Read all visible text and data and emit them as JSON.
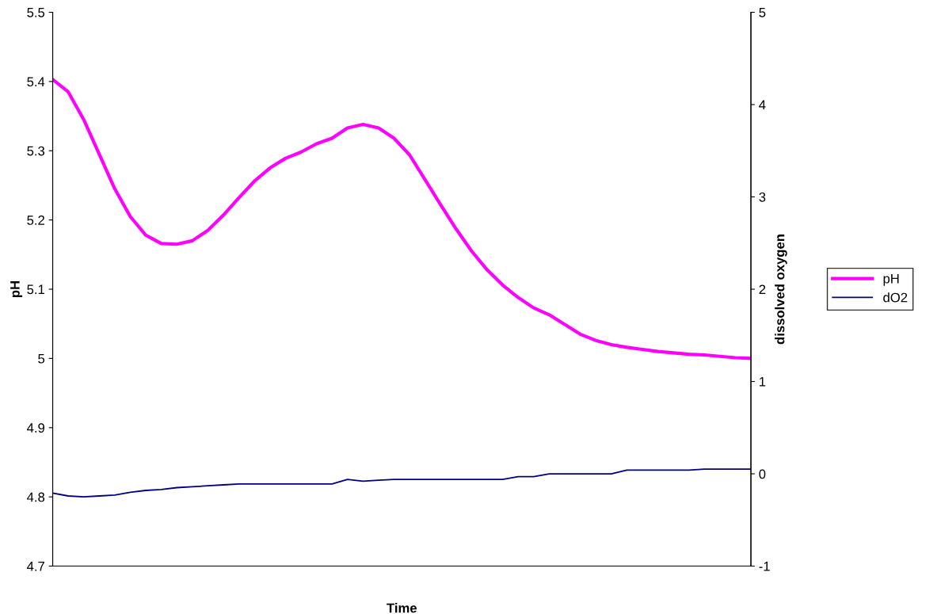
{
  "chart_data": {
    "type": "line",
    "xlabel": "Time",
    "ylabel": "pH",
    "y2label": "dissolved oxygen",
    "categories": [
      null,
      null,
      null,
      null,
      null,
      null,
      null,
      null,
      null,
      null,
      null,
      null,
      null,
      null,
      null,
      null,
      null,
      null,
      null,
      null,
      null,
      null,
      null,
      null,
      null,
      null,
      null,
      null,
      null,
      null,
      null,
      null,
      null,
      null,
      null,
      null,
      null,
      null,
      null,
      null,
      null,
      null,
      null,
      null,
      null,
      null
    ],
    "series": [
      {
        "name": "pH",
        "color": "#ff00ff",
        "values": [
          5.403,
          5.385,
          5.345,
          5.295,
          5.245,
          5.205,
          5.178,
          5.166,
          5.165,
          5.17,
          5.185,
          5.207,
          5.232,
          5.256,
          5.275,
          5.289,
          5.298,
          5.31,
          5.318,
          5.333,
          5.338,
          5.333,
          5.318,
          5.294,
          5.258,
          5.222,
          5.187,
          5.155,
          5.128,
          5.106,
          5.088,
          5.073,
          5.063,
          5.049,
          5.035,
          5.026,
          5.02,
          5.016,
          5.013,
          5.01,
          5.008,
          5.006,
          5.005,
          5.003,
          5.001,
          5.0
        ]
      },
      {
        "name": "dO2",
        "color": "#000080",
        "axis": "y2",
        "values": [
          -0.21,
          -0.24,
          -0.25,
          -0.24,
          -0.23,
          -0.2,
          -0.18,
          -0.17,
          -0.15,
          -0.14,
          -0.13,
          -0.12,
          -0.11,
          -0.11,
          -0.11,
          -0.11,
          -0.11,
          -0.11,
          -0.11,
          -0.06,
          -0.08,
          -0.07,
          -0.06,
          -0.06,
          -0.06,
          -0.06,
          -0.06,
          -0.06,
          -0.06,
          -0.06,
          -0.03,
          -0.03,
          0.0,
          0.0,
          0.0,
          0.0,
          0.0,
          0.04,
          0.04,
          0.04,
          0.04,
          0.04,
          0.05,
          0.05,
          0.05,
          0.05
        ]
      }
    ],
    "ylim": [
      4.7,
      5.5
    ],
    "yticks": [
      4.7,
      4.8,
      4.9,
      5,
      5.1,
      5.2,
      5.3,
      5.4,
      5.5
    ],
    "y2lim": [
      -1,
      5
    ],
    "y2ticks": [
      -1,
      0,
      1,
      2,
      3,
      4,
      5
    ],
    "legend": "right",
    "grid": false,
    "marker": "none",
    "line_style": "solid"
  }
}
